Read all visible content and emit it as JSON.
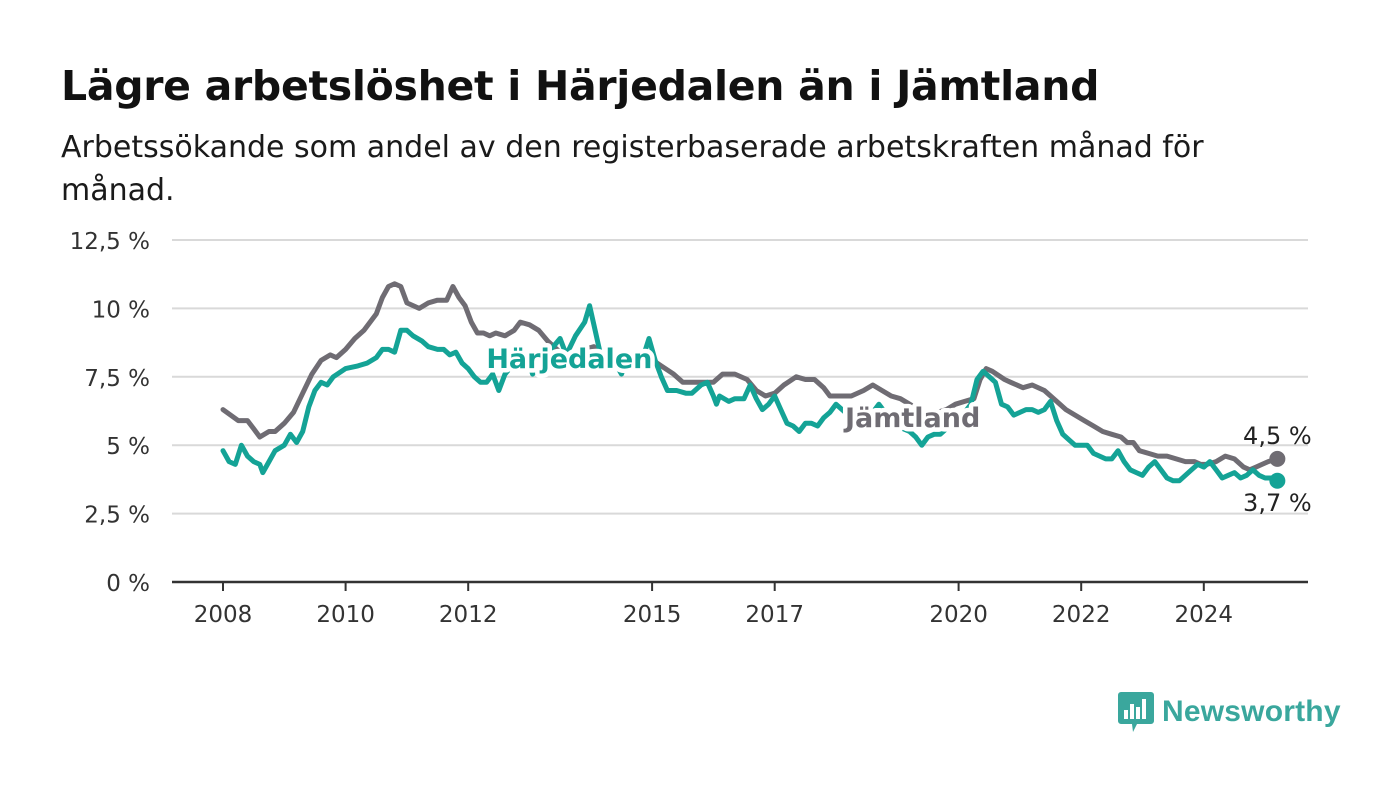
{
  "header": {
    "title": "Lägre arbetslöshet i Härjedalen än i Jämtland",
    "subtitle": "Arbetssökande som andel av den registerbaserade arbetskraften månad för månad."
  },
  "brand": {
    "name": "Newsworthy",
    "icon": "bar-chart-speech-icon",
    "color": "#3aa79d"
  },
  "chart_data": {
    "type": "line",
    "title": "Lägre arbetslöshet i Härjedalen än i Jämtland",
    "subtitle": "Arbetssökande som andel av den registerbaserade arbetskraften månad för månad.",
    "xlabel": "",
    "ylabel": "",
    "ylim": [
      0,
      12.5
    ],
    "xlim": [
      2007.5,
      2026.1
    ],
    "grid": true,
    "y_ticks": [
      {
        "value": 0,
        "label": "0 %"
      },
      {
        "value": 2.5,
        "label": "2,5 %"
      },
      {
        "value": 5,
        "label": "5 %"
      },
      {
        "value": 7.5,
        "label": "7,5 %"
      },
      {
        "value": 10,
        "label": "10 %"
      },
      {
        "value": 12.5,
        "label": "12,5 %"
      }
    ],
    "x_ticks": [
      {
        "value": 2008,
        "label": "2008"
      },
      {
        "value": 2010,
        "label": "2010"
      },
      {
        "value": 2012,
        "label": "2012"
      },
      {
        "value": 2015,
        "label": "2015"
      },
      {
        "value": 2017,
        "label": "2017"
      },
      {
        "value": 2020,
        "label": "2020"
      },
      {
        "value": 2022,
        "label": "2022"
      },
      {
        "value": 2024,
        "label": "2024"
      }
    ],
    "series": [
      {
        "name": "Jämtland",
        "color": "#6f6c73",
        "end_label": "4,5 %",
        "points": [
          [
            2008.0,
            6.3
          ],
          [
            2008.25,
            5.9
          ],
          [
            2008.4,
            5.9
          ],
          [
            2008.5,
            5.6
          ],
          [
            2008.6,
            5.3
          ],
          [
            2008.75,
            5.5
          ],
          [
            2008.85,
            5.5
          ],
          [
            2009.0,
            5.8
          ],
          [
            2009.15,
            6.2
          ],
          [
            2009.3,
            6.9
          ],
          [
            2009.45,
            7.6
          ],
          [
            2009.6,
            8.1
          ],
          [
            2009.75,
            8.3
          ],
          [
            2009.85,
            8.2
          ],
          [
            2010.0,
            8.5
          ],
          [
            2010.15,
            8.9
          ],
          [
            2010.3,
            9.2
          ],
          [
            2010.5,
            9.8
          ],
          [
            2010.6,
            10.4
          ],
          [
            2010.7,
            10.8
          ],
          [
            2010.8,
            10.9
          ],
          [
            2010.9,
            10.8
          ],
          [
            2011.0,
            10.2
          ],
          [
            2011.2,
            10.0
          ],
          [
            2011.35,
            10.2
          ],
          [
            2011.5,
            10.3
          ],
          [
            2011.65,
            10.3
          ],
          [
            2011.75,
            10.8
          ],
          [
            2011.85,
            10.4
          ],
          [
            2011.95,
            10.1
          ],
          [
            2012.05,
            9.5
          ],
          [
            2012.15,
            9.1
          ],
          [
            2012.25,
            9.1
          ],
          [
            2012.35,
            9.0
          ],
          [
            2012.45,
            9.1
          ],
          [
            2012.6,
            9.0
          ],
          [
            2012.75,
            9.2
          ],
          [
            2012.85,
            9.5
          ],
          [
            2013.0,
            9.4
          ],
          [
            2013.15,
            9.2
          ],
          [
            2013.3,
            8.8
          ],
          [
            2013.5,
            8.4
          ],
          [
            2013.7,
            8.3
          ],
          [
            2013.9,
            8.5
          ],
          [
            2014.05,
            8.6
          ],
          [
            2014.15,
            8.2
          ],
          [
            2014.35,
            8.0
          ],
          [
            2014.55,
            8.2
          ],
          [
            2014.75,
            8.0
          ],
          [
            2014.95,
            8.2
          ],
          [
            2015.15,
            7.9
          ],
          [
            2015.35,
            7.6
          ],
          [
            2015.5,
            7.3
          ],
          [
            2015.65,
            7.3
          ],
          [
            2015.85,
            7.3
          ],
          [
            2016.0,
            7.3
          ],
          [
            2016.15,
            7.6
          ],
          [
            2016.35,
            7.6
          ],
          [
            2016.55,
            7.4
          ],
          [
            2016.7,
            7.0
          ],
          [
            2016.85,
            6.8
          ],
          [
            2017.0,
            6.9
          ],
          [
            2017.15,
            7.2
          ],
          [
            2017.35,
            7.5
          ],
          [
            2017.5,
            7.4
          ],
          [
            2017.65,
            7.4
          ],
          [
            2017.8,
            7.1
          ],
          [
            2017.9,
            6.8
          ],
          [
            2018.05,
            6.8
          ],
          [
            2018.25,
            6.8
          ],
          [
            2018.45,
            7.0
          ],
          [
            2018.6,
            7.2
          ],
          [
            2018.75,
            7.0
          ],
          [
            2018.9,
            6.8
          ],
          [
            2019.05,
            6.7
          ],
          [
            2019.2,
            6.5
          ],
          [
            2019.35,
            6.3
          ],
          [
            2019.5,
            6.2
          ],
          [
            2019.65,
            6.2
          ],
          [
            2019.8,
            6.3
          ],
          [
            2019.95,
            6.5
          ],
          [
            2020.1,
            6.6
          ],
          [
            2020.25,
            6.7
          ],
          [
            2020.35,
            7.4
          ],
          [
            2020.45,
            7.8
          ],
          [
            2020.55,
            7.7
          ],
          [
            2020.75,
            7.4
          ],
          [
            2020.85,
            7.3
          ],
          [
            2021.05,
            7.1
          ],
          [
            2021.2,
            7.2
          ],
          [
            2021.4,
            7.0
          ],
          [
            2021.6,
            6.6
          ],
          [
            2021.75,
            6.3
          ],
          [
            2021.9,
            6.1
          ],
          [
            2022.05,
            5.9
          ],
          [
            2022.2,
            5.7
          ],
          [
            2022.35,
            5.5
          ],
          [
            2022.5,
            5.4
          ],
          [
            2022.65,
            5.3
          ],
          [
            2022.75,
            5.1
          ],
          [
            2022.85,
            5.1
          ],
          [
            2022.95,
            4.8
          ],
          [
            2023.1,
            4.7
          ],
          [
            2023.25,
            4.6
          ],
          [
            2023.4,
            4.6
          ],
          [
            2023.55,
            4.5
          ],
          [
            2023.7,
            4.4
          ],
          [
            2023.85,
            4.4
          ],
          [
            2023.95,
            4.3
          ],
          [
            2024.05,
            4.3
          ],
          [
            2024.2,
            4.4
          ],
          [
            2024.35,
            4.6
          ],
          [
            2024.5,
            4.5
          ],
          [
            2024.65,
            4.2
          ],
          [
            2024.75,
            4.1
          ],
          [
            2024.85,
            4.2
          ],
          [
            2024.95,
            4.3
          ],
          [
            2025.05,
            4.4
          ],
          [
            2025.2,
            4.5
          ]
        ]
      },
      {
        "name": "Härjedalen",
        "color": "#14a396",
        "end_label": "3,7 %",
        "points": [
          [
            2008.0,
            4.8
          ],
          [
            2008.1,
            4.4
          ],
          [
            2008.2,
            4.3
          ],
          [
            2008.3,
            5.0
          ],
          [
            2008.4,
            4.6
          ],
          [
            2008.5,
            4.4
          ],
          [
            2008.6,
            4.3
          ],
          [
            2008.65,
            4.0
          ],
          [
            2008.75,
            4.4
          ],
          [
            2008.85,
            4.8
          ],
          [
            2009.0,
            5.0
          ],
          [
            2009.1,
            5.4
          ],
          [
            2009.2,
            5.1
          ],
          [
            2009.3,
            5.5
          ],
          [
            2009.4,
            6.4
          ],
          [
            2009.5,
            7.0
          ],
          [
            2009.6,
            7.3
          ],
          [
            2009.7,
            7.2
          ],
          [
            2009.8,
            7.5
          ],
          [
            2010.0,
            7.8
          ],
          [
            2010.2,
            7.9
          ],
          [
            2010.35,
            8.0
          ],
          [
            2010.5,
            8.2
          ],
          [
            2010.6,
            8.5
          ],
          [
            2010.7,
            8.5
          ],
          [
            2010.8,
            8.4
          ],
          [
            2010.9,
            9.2
          ],
          [
            2011.0,
            9.2
          ],
          [
            2011.1,
            9.0
          ],
          [
            2011.25,
            8.8
          ],
          [
            2011.35,
            8.6
          ],
          [
            2011.5,
            8.5
          ],
          [
            2011.6,
            8.5
          ],
          [
            2011.7,
            8.3
          ],
          [
            2011.8,
            8.4
          ],
          [
            2011.9,
            8.0
          ],
          [
            2012.0,
            7.8
          ],
          [
            2012.1,
            7.5
          ],
          [
            2012.2,
            7.3
          ],
          [
            2012.3,
            7.3
          ],
          [
            2012.4,
            7.6
          ],
          [
            2012.5,
            7.0
          ],
          [
            2012.6,
            7.6
          ],
          [
            2012.75,
            8.0
          ],
          [
            2012.85,
            8.3
          ],
          [
            2012.95,
            8.3
          ],
          [
            2013.05,
            7.6
          ],
          [
            2013.15,
            7.9
          ],
          [
            2013.25,
            8.1
          ],
          [
            2013.35,
            8.5
          ],
          [
            2013.5,
            8.9
          ],
          [
            2013.6,
            8.3
          ],
          [
            2013.75,
            9.0
          ],
          [
            2013.9,
            9.5
          ],
          [
            2013.98,
            10.1
          ],
          [
            2014.05,
            9.4
          ],
          [
            2014.15,
            8.4
          ],
          [
            2014.25,
            8.2
          ],
          [
            2014.4,
            8.0
          ],
          [
            2014.5,
            7.6
          ],
          [
            2014.6,
            8.2
          ],
          [
            2014.75,
            8.0
          ],
          [
            2014.85,
            8.2
          ],
          [
            2014.95,
            8.9
          ],
          [
            2015.05,
            8.1
          ],
          [
            2015.15,
            7.5
          ],
          [
            2015.25,
            7.0
          ],
          [
            2015.4,
            7.0
          ],
          [
            2015.55,
            6.9
          ],
          [
            2015.65,
            6.9
          ],
          [
            2015.8,
            7.2
          ],
          [
            2015.9,
            7.3
          ],
          [
            2016.0,
            6.8
          ],
          [
            2016.05,
            6.5
          ],
          [
            2016.1,
            6.8
          ],
          [
            2016.25,
            6.6
          ],
          [
            2016.35,
            6.7
          ],
          [
            2016.5,
            6.7
          ],
          [
            2016.6,
            7.2
          ],
          [
            2016.7,
            6.7
          ],
          [
            2016.8,
            6.3
          ],
          [
            2016.9,
            6.5
          ],
          [
            2017.0,
            6.8
          ],
          [
            2017.1,
            6.3
          ],
          [
            2017.2,
            5.8
          ],
          [
            2017.3,
            5.7
          ],
          [
            2017.4,
            5.5
          ],
          [
            2017.5,
            5.8
          ],
          [
            2017.6,
            5.8
          ],
          [
            2017.7,
            5.7
          ],
          [
            2017.8,
            6.0
          ],
          [
            2017.9,
            6.2
          ],
          [
            2018.0,
            6.5
          ],
          [
            2018.1,
            6.3
          ],
          [
            2018.2,
            6.1
          ],
          [
            2018.3,
            6.4
          ],
          [
            2018.4,
            6.1
          ],
          [
            2018.5,
            5.8
          ],
          [
            2018.6,
            6.2
          ],
          [
            2018.7,
            6.5
          ],
          [
            2018.8,
            6.2
          ],
          [
            2018.9,
            6.0
          ],
          [
            2019.0,
            5.8
          ],
          [
            2019.1,
            5.6
          ],
          [
            2019.2,
            5.5
          ],
          [
            2019.3,
            5.3
          ],
          [
            2019.4,
            5.0
          ],
          [
            2019.5,
            5.3
          ],
          [
            2019.6,
            5.4
          ],
          [
            2019.7,
            5.4
          ],
          [
            2019.8,
            5.6
          ],
          [
            2019.9,
            5.8
          ],
          [
            2020.0,
            6.0
          ],
          [
            2020.1,
            6.2
          ],
          [
            2020.2,
            6.5
          ],
          [
            2020.3,
            7.4
          ],
          [
            2020.4,
            7.7
          ],
          [
            2020.5,
            7.5
          ],
          [
            2020.6,
            7.3
          ],
          [
            2020.7,
            6.5
          ],
          [
            2020.8,
            6.4
          ],
          [
            2020.9,
            6.1
          ],
          [
            2021.0,
            6.2
          ],
          [
            2021.1,
            6.3
          ],
          [
            2021.2,
            6.3
          ],
          [
            2021.3,
            6.2
          ],
          [
            2021.4,
            6.3
          ],
          [
            2021.5,
            6.6
          ],
          [
            2021.6,
            5.9
          ],
          [
            2021.7,
            5.4
          ],
          [
            2021.8,
            5.2
          ],
          [
            2021.9,
            5.0
          ],
          [
            2022.0,
            5.0
          ],
          [
            2022.1,
            5.0
          ],
          [
            2022.2,
            4.7
          ],
          [
            2022.3,
            4.6
          ],
          [
            2022.4,
            4.5
          ],
          [
            2022.5,
            4.5
          ],
          [
            2022.6,
            4.8
          ],
          [
            2022.7,
            4.4
          ],
          [
            2022.8,
            4.1
          ],
          [
            2022.9,
            4.0
          ],
          [
            2023.0,
            3.9
          ],
          [
            2023.1,
            4.2
          ],
          [
            2023.2,
            4.4
          ],
          [
            2023.3,
            4.1
          ],
          [
            2023.4,
            3.8
          ],
          [
            2023.5,
            3.7
          ],
          [
            2023.6,
            3.7
          ],
          [
            2023.7,
            3.9
          ],
          [
            2023.8,
            4.1
          ],
          [
            2023.9,
            4.3
          ],
          [
            2024.0,
            4.2
          ],
          [
            2024.1,
            4.4
          ],
          [
            2024.2,
            4.1
          ],
          [
            2024.3,
            3.8
          ],
          [
            2024.4,
            3.9
          ],
          [
            2024.5,
            4.0
          ],
          [
            2024.6,
            3.8
          ],
          [
            2024.7,
            3.9
          ],
          [
            2024.8,
            4.1
          ],
          [
            2024.9,
            3.9
          ],
          [
            2025.0,
            3.8
          ],
          [
            2025.1,
            3.8
          ],
          [
            2025.2,
            3.7
          ]
        ]
      }
    ],
    "annotations": [
      {
        "text": "Härjedalen",
        "series": "Härjedalen",
        "x": 2013.65,
        "y": 8.15
      },
      {
        "text": "Jämtland",
        "series": "Jämtland",
        "x": 2019.25,
        "y": 6.0
      }
    ]
  }
}
